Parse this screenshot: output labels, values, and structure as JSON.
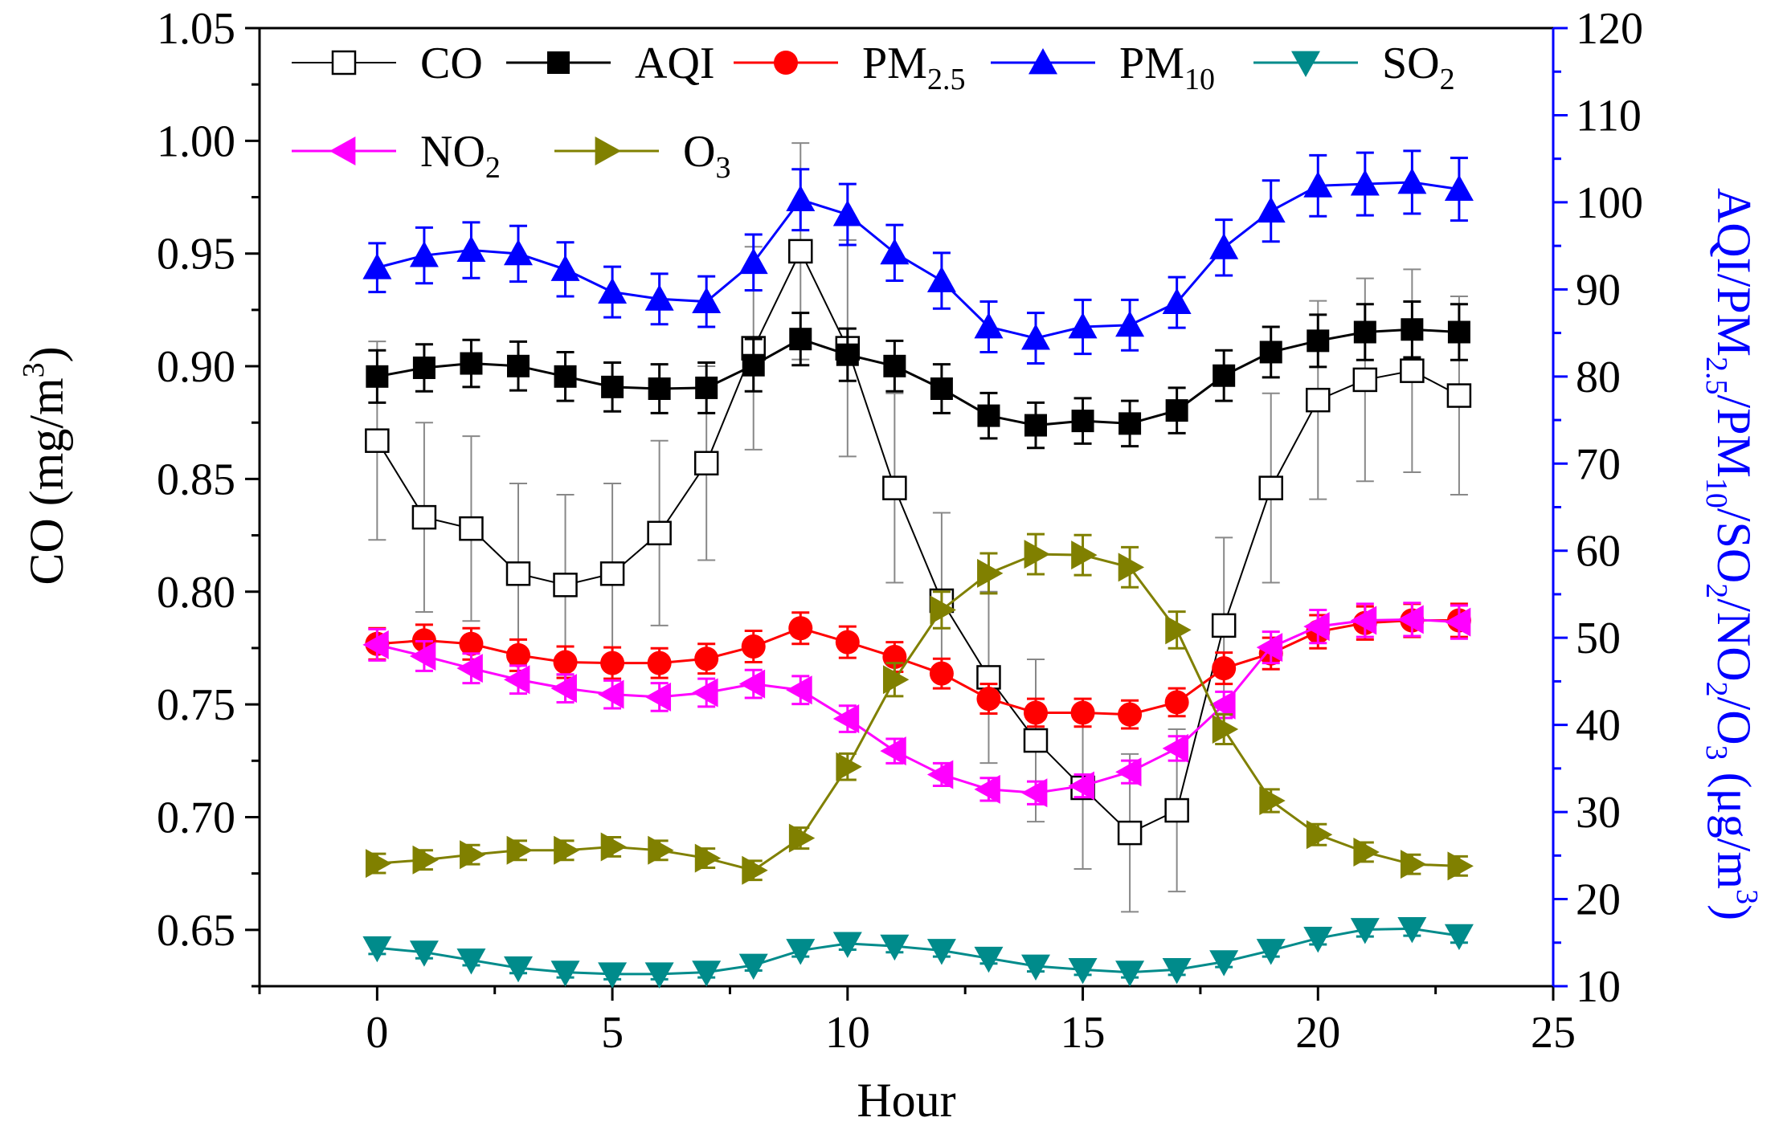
{
  "chart_data": {
    "type": "line",
    "title": "",
    "xlabel": "Hour",
    "ylabel_left": "CO (mg/m³)",
    "ylabel_left_parts": {
      "pre": "CO (mg/m",
      "sup": "3",
      "post": ")"
    },
    "ylabel_right": "AQI/PM2.5/PM10/SO2/NO2/O3 (μg/m³)",
    "ylabel_right_parts": [
      {
        "t": "AQI/PM",
        "s": ""
      },
      {
        "t": "2.5",
        "s": "sub"
      },
      {
        "t": "/PM",
        "s": ""
      },
      {
        "t": "10",
        "s": "sub"
      },
      {
        "t": "/SO",
        "s": ""
      },
      {
        "t": "2",
        "s": "sub"
      },
      {
        "t": "/NO",
        "s": ""
      },
      {
        "t": "2",
        "s": "sub"
      },
      {
        "t": "/O",
        "s": ""
      },
      {
        "t": "3",
        "s": "sub"
      },
      {
        "t": " (μg/m",
        "s": ""
      },
      {
        "t": "3",
        "s": "sup"
      },
      {
        "t": ")",
        "s": ""
      }
    ],
    "xlim": [
      -2.5,
      25
    ],
    "xticks": [
      "0",
      "5",
      "10",
      "15",
      "20",
      "25"
    ],
    "ylim_left": [
      0.625,
      1.05
    ],
    "yticks_left": [
      "0.65",
      "0.70",
      "0.75",
      "0.80",
      "0.85",
      "0.90",
      "0.95",
      "1.00",
      "1.05"
    ],
    "ylim_right": [
      10,
      120
    ],
    "yticks_right": [
      "10",
      "20",
      "30",
      "40",
      "50",
      "60",
      "70",
      "80",
      "90",
      "100",
      "110",
      "120"
    ],
    "x": [
      0,
      1,
      2,
      3,
      4,
      5,
      6,
      7,
      8,
      9,
      10,
      11,
      12,
      13,
      14,
      15,
      16,
      17,
      18,
      19,
      20,
      21,
      22,
      23
    ],
    "series": [
      {
        "name": "CO",
        "label": "CO",
        "sub": "",
        "axis": "left",
        "color": "#000000",
        "line_color": "#000000",
        "marker": "square-open",
        "values": [
          0.867,
          0.833,
          0.828,
          0.808,
          0.803,
          0.808,
          0.826,
          0.857,
          0.908,
          0.951,
          0.908,
          0.846,
          0.796,
          0.762,
          0.734,
          0.713,
          0.693,
          0.703,
          0.785,
          0.846,
          0.885,
          0.894,
          0.898,
          0.887
        ],
        "errors": [
          0.044,
          0.042,
          0.041,
          0.04,
          0.04,
          0.04,
          0.041,
          0.043,
          0.045,
          0.048,
          0.048,
          0.042,
          0.039,
          0.038,
          0.036,
          0.036,
          0.035,
          0.036,
          0.039,
          0.042,
          0.044,
          0.045,
          0.045,
          0.044
        ]
      },
      {
        "name": "AQI",
        "label": "AQI",
        "sub": "",
        "axis": "right",
        "color": "#000000",
        "line_color": "#000000",
        "marker": "square",
        "values": [
          80,
          81,
          81.5,
          81.2,
          80,
          78.8,
          78.6,
          78.7,
          81.3,
          84.3,
          82.5,
          81.2,
          78.6,
          75.5,
          74.4,
          74.9,
          74.6,
          76.1,
          80.1,
          82.8,
          84.1,
          85.1,
          85.4,
          85.1
        ],
        "errors": [
          3,
          2.7,
          2.7,
          2.8,
          2.8,
          2.8,
          2.8,
          2.9,
          3,
          3,
          3,
          2.9,
          2.8,
          2.6,
          2.6,
          2.6,
          2.6,
          2.6,
          2.9,
          2.9,
          3,
          3.2,
          3.2,
          3.2
        ]
      },
      {
        "name": "PM2.5",
        "label": "PM",
        "sub": "2.5",
        "axis": "right",
        "color": "#ff0000",
        "line_color": "#ff0000",
        "marker": "circle",
        "values": [
          49.3,
          49.7,
          49.3,
          48.0,
          47.2,
          47.1,
          47.1,
          47.6,
          49.0,
          51.1,
          49.5,
          47.8,
          45.9,
          43.0,
          41.4,
          41.4,
          41.2,
          42.6,
          46.5,
          48.2,
          50.7,
          51.7,
          52.0,
          52.0
        ],
        "errors": [
          1.8,
          1.8,
          1.8,
          1.8,
          1.8,
          1.8,
          1.7,
          1.7,
          1.8,
          1.8,
          1.8,
          1.7,
          1.7,
          1.7,
          1.6,
          1.6,
          1.6,
          1.6,
          1.8,
          1.8,
          1.9,
          1.9,
          1.9,
          1.9
        ]
      },
      {
        "name": "PM10",
        "label": "PM",
        "sub": "10",
        "axis": "right",
        "color": "#0000ff",
        "line_color": "#0000ff",
        "marker": "triangle-up",
        "values": [
          92.5,
          93.9,
          94.5,
          94.1,
          92.3,
          89.7,
          88.9,
          88.6,
          93.1,
          100.3,
          98.6,
          94.2,
          91.0,
          85.7,
          84.4,
          85.7,
          85.9,
          88.5,
          94.8,
          99.0,
          101.9,
          102.1,
          102.3,
          101.5
        ],
        "errors": [
          2.8,
          3.2,
          3.2,
          3.2,
          3.1,
          2.9,
          2.9,
          2.9,
          3.2,
          3.5,
          3.5,
          3.2,
          3.2,
          2.9,
          2.9,
          3.1,
          2.9,
          2.9,
          3.2,
          3.5,
          3.5,
          3.6,
          3.6,
          3.6
        ]
      },
      {
        "name": "SO2",
        "label": "SO",
        "sub": "2",
        "axis": "right",
        "color": "#008b8b",
        "line_color": "#008b8b",
        "marker": "triangle-down",
        "values": [
          14.4,
          13.9,
          13.0,
          12.1,
          11.6,
          11.4,
          11.4,
          11.6,
          12.4,
          14.1,
          14.9,
          14.6,
          14.1,
          13.2,
          12.3,
          11.9,
          11.6,
          11.9,
          12.8,
          14.1,
          15.5,
          16.5,
          16.6,
          15.8
        ],
        "errors": [
          0.7,
          0.7,
          0.6,
          0.6,
          0.6,
          0.6,
          0.6,
          0.6,
          0.6,
          0.7,
          0.7,
          0.7,
          0.7,
          0.6,
          0.6,
          0.6,
          0.6,
          0.6,
          0.6,
          0.7,
          0.7,
          0.8,
          0.8,
          0.8
        ]
      },
      {
        "name": "NO2",
        "label": "NO",
        "sub": "2",
        "axis": "right",
        "color": "#ff00ff",
        "line_color": "#ff00ff",
        "marker": "triangle-left",
        "values": [
          49.2,
          47.9,
          46.5,
          45.2,
          44.2,
          43.5,
          43.2,
          43.7,
          44.7,
          44.0,
          40.7,
          37.0,
          34.3,
          32.6,
          32.2,
          33.0,
          34.6,
          37.3,
          42.3,
          48.9,
          51.3,
          52.0,
          52.1,
          51.8
        ],
        "errors": [
          1.8,
          1.7,
          1.7,
          1.6,
          1.6,
          1.6,
          1.6,
          1.6,
          1.6,
          1.6,
          1.5,
          1.4,
          1.3,
          1.3,
          1.3,
          1.3,
          1.3,
          1.4,
          1.5,
          1.8,
          1.9,
          1.9,
          1.9,
          1.9
        ]
      },
      {
        "name": "O3",
        "label": "O",
        "sub": "3",
        "axis": "right",
        "color": "#808000",
        "line_color": "#808000",
        "marker": "triangle-right",
        "values": [
          24.1,
          24.5,
          25.1,
          25.6,
          25.6,
          26.0,
          25.6,
          24.7,
          23.3,
          27.0,
          35.2,
          45.2,
          53.2,
          57.4,
          59.6,
          59.5,
          58.1,
          50.9,
          39.5,
          31.3,
          27.4,
          25.4,
          24.0,
          23.8
        ],
        "errors": [
          1.1,
          1.1,
          1.1,
          1.1,
          1.1,
          1.1,
          1.1,
          1.1,
          1.1,
          1.2,
          1.5,
          1.9,
          2.1,
          2.3,
          2.3,
          2.3,
          2.3,
          2.1,
          1.7,
          1.3,
          1.2,
          1.1,
          1.1,
          1.1
        ]
      }
    ],
    "legend_position": "top-left"
  }
}
